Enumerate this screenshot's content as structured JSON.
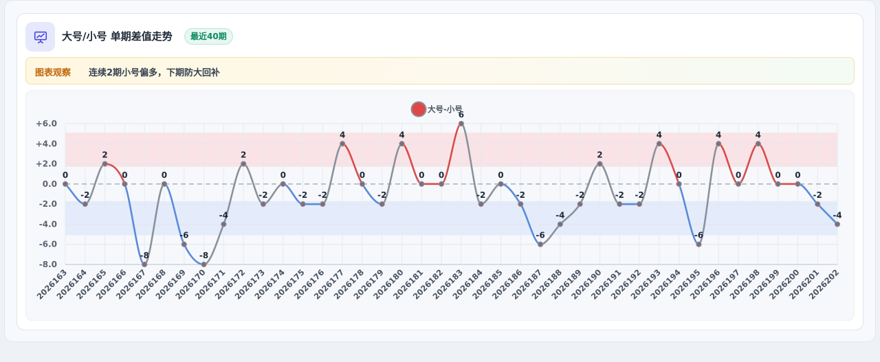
{
  "header": {
    "icon": "presentation-chart-icon",
    "title": "大号/小号 单期差值走势",
    "badge": "最近40期"
  },
  "observation": {
    "tag": "图表观察",
    "text": "连续2期小号偏多，下期防大回补"
  },
  "colors": {
    "accent_positive": "#d84d4d",
    "accent_negative": "#5b8ad9",
    "neutral_line": "#8a929c",
    "badge_green": "#0f8b62",
    "observation_tag": "#c2670c"
  },
  "chart_data": {
    "type": "line",
    "legend": {
      "name": "大号-小号",
      "position": "top-center"
    },
    "categories": [
      "2026163",
      "2026164",
      "2026165",
      "2026166",
      "2026167",
      "2026168",
      "2026169",
      "2026170",
      "2026171",
      "2026172",
      "2026173",
      "2026174",
      "2026175",
      "2026176",
      "2026177",
      "2026178",
      "2026179",
      "2026180",
      "2026181",
      "2026182",
      "2026183",
      "2026184",
      "2026185",
      "2026186",
      "2026187",
      "2026188",
      "2026189",
      "2026190",
      "2026191",
      "2026192",
      "2026193",
      "2026194",
      "2026195",
      "2026196",
      "2026197",
      "2026198",
      "2026199",
      "2026200",
      "2026201",
      "2026202"
    ],
    "series": [
      {
        "name": "大号-小号",
        "values": [
          0,
          -2,
          2,
          0,
          -8,
          0,
          -6,
          -8,
          -4,
          2,
          -2,
          0,
          -2,
          -2,
          4,
          0,
          -2,
          4,
          0,
          0,
          6,
          -2,
          0,
          -2,
          -6,
          -4,
          -2,
          2,
          -2,
          -2,
          4,
          0,
          -6,
          4,
          0,
          4,
          0,
          0,
          -2,
          -4
        ]
      }
    ],
    "ylim": [
      -8,
      6
    ],
    "yticks": [
      "+6.0",
      "+4.0",
      "+2.0",
      "0.0",
      "-2.0",
      "-4.0",
      "-6.0",
      "-8.0"
    ],
    "bands": [
      {
        "from": 1.7,
        "to": 5.1,
        "color": "#f9e3e6"
      },
      {
        "from": -5.1,
        "to": -1.7,
        "color": "#e4ecfb"
      }
    ],
    "zero_line": "dashed",
    "grid": true,
    "xlabel": "",
    "ylabel": ""
  }
}
